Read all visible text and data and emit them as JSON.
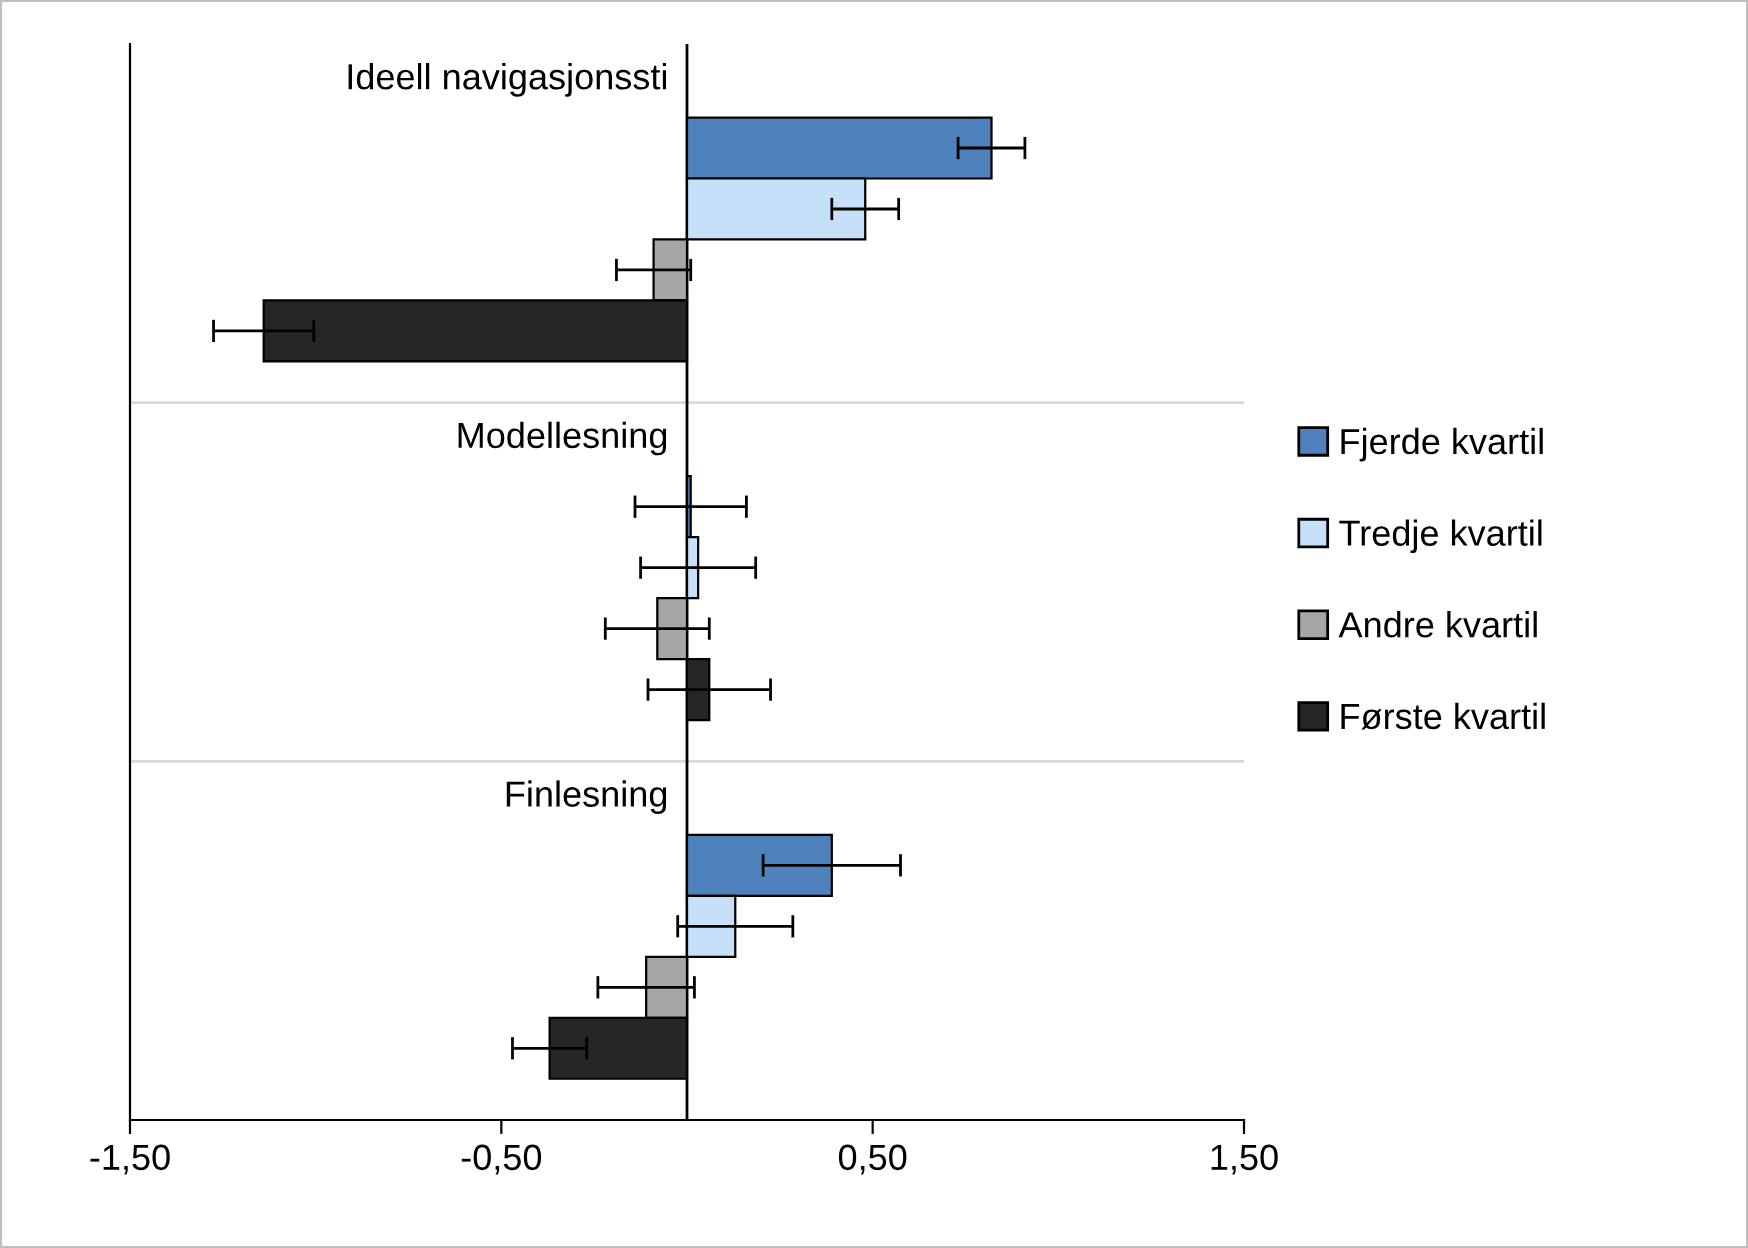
{
  "chart_data": {
    "type": "bar",
    "orientation": "horizontal",
    "categories": [
      "Ideell navigasjonssti",
      "Modellesning",
      "Finlesning"
    ],
    "series": [
      {
        "name": "Fjerde kvartil",
        "color": "#4f81bd",
        "values": [
          0.82,
          0.01,
          0.39
        ],
        "errors": [
          0.09,
          0.15,
          0.185
        ]
      },
      {
        "name": "Tredje kvartil",
        "color": "#c6e0fa",
        "values": [
          0.48,
          0.03,
          0.13
        ],
        "errors": [
          0.09,
          0.155,
          0.155
        ]
      },
      {
        "name": "Andre kvartil",
        "color": "#a6a6a6",
        "values": [
          -0.09,
          -0.08,
          -0.11
        ],
        "errors": [
          0.1,
          0.14,
          0.13
        ]
      },
      {
        "name": "Første kvartil",
        "color": "#262626",
        "values": [
          -1.14,
          0.06,
          -0.37
        ],
        "errors": [
          0.135,
          0.165,
          0.1
        ]
      }
    ],
    "xlim": [
      -1.5,
      1.5
    ],
    "xticks": [
      {
        "value": -1.5,
        "label": "-1,50"
      },
      {
        "value": -0.5,
        "label": "-0,50"
      },
      {
        "value": 0.5,
        "label": "0,50"
      },
      {
        "value": 1.5,
        "label": "1,50"
      }
    ],
    "grid": "y",
    "legend": "right"
  }
}
